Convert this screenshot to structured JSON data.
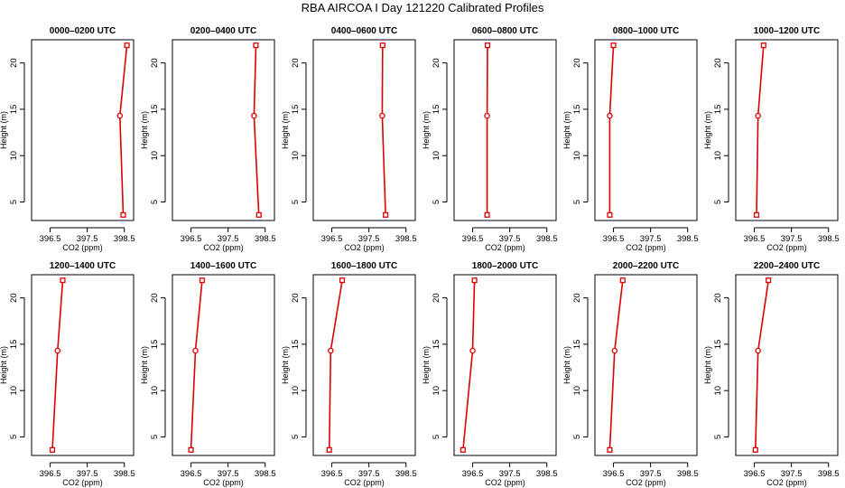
{
  "title": "RBA AIRCOA I  Day 121220  Calibrated Profiles",
  "colors": {
    "line": "#dd0000",
    "axes": "#000000",
    "background": "#ffffff"
  },
  "chart_data": [
    {
      "type": "line",
      "title": "0000–0200 UTC",
      "xlabel": "CO2 (ppm)",
      "ylabel": "Height (m)",
      "xlim": [
        396.0,
        398.75
      ],
      "ylim": [
        3,
        22.5
      ],
      "xticks": [
        "396.5",
        "397.5",
        "398.5"
      ],
      "yticks": [
        "5",
        "10",
        "15",
        "20"
      ],
      "series": [
        {
          "x": [
            398.47,
            398.38,
            398.57
          ],
          "y": [
            3.6,
            14.3,
            21.9
          ]
        }
      ]
    },
    {
      "type": "line",
      "title": "0200–0400 UTC",
      "xlabel": "CO2 (ppm)",
      "ylabel": "Height (m)",
      "xlim": [
        396.0,
        398.75
      ],
      "ylim": [
        3,
        22.5
      ],
      "xticks": [
        "396.5",
        "397.5",
        "398.5"
      ],
      "yticks": [
        "5",
        "10",
        "15",
        "20"
      ],
      "series": [
        {
          "x": [
            398.33,
            398.2,
            398.25
          ],
          "y": [
            3.6,
            14.3,
            21.9
          ]
        }
      ]
    },
    {
      "type": "line",
      "title": "0400–0600 UTC",
      "xlabel": "CO2 (ppm)",
      "ylabel": "Height (m)",
      "xlim": [
        396.0,
        398.75
      ],
      "ylim": [
        3,
        22.5
      ],
      "xticks": [
        "396.5",
        "397.5",
        "398.5"
      ],
      "yticks": [
        "5",
        "10",
        "15",
        "20"
      ],
      "series": [
        {
          "x": [
            397.95,
            397.86,
            397.87
          ],
          "y": [
            3.6,
            14.3,
            21.9
          ]
        }
      ]
    },
    {
      "type": "line",
      "title": "0600–0800 UTC",
      "xlabel": "CO2 (ppm)",
      "ylabel": "Height (m)",
      "xlim": [
        396.0,
        398.75
      ],
      "ylim": [
        3,
        22.5
      ],
      "xticks": [
        "396.5",
        "397.5",
        "398.5"
      ],
      "yticks": [
        "5",
        "10",
        "15",
        "20"
      ],
      "series": [
        {
          "x": [
            396.89,
            396.89,
            396.9
          ],
          "y": [
            3.6,
            14.3,
            21.9
          ]
        }
      ]
    },
    {
      "type": "line",
      "title": "0800–1000 UTC",
      "xlabel": "CO2 (ppm)",
      "ylabel": "Height (m)",
      "xlim": [
        396.0,
        398.75
      ],
      "ylim": [
        3,
        22.5
      ],
      "xticks": [
        "396.5",
        "397.5",
        "398.5"
      ],
      "yticks": [
        "5",
        "10",
        "15",
        "20"
      ],
      "series": [
        {
          "x": [
            396.4,
            396.4,
            396.5
          ],
          "y": [
            3.6,
            14.3,
            21.9
          ]
        }
      ]
    },
    {
      "type": "line",
      "title": "1000–1200 UTC",
      "xlabel": "CO2 (ppm)",
      "ylabel": "Height (m)",
      "xlim": [
        396.0,
        398.75
      ],
      "ylim": [
        3,
        22.5
      ],
      "xticks": [
        "396.5",
        "397.5",
        "398.5"
      ],
      "yticks": [
        "5",
        "10",
        "15",
        "20"
      ],
      "series": [
        {
          "x": [
            396.56,
            396.6,
            396.75
          ],
          "y": [
            3.6,
            14.3,
            21.9
          ]
        }
      ]
    },
    {
      "type": "line",
      "title": "1200–1400 UTC",
      "xlabel": "CO2 (ppm)",
      "ylabel": "Height (m)",
      "xlim": [
        396.0,
        398.75
      ],
      "ylim": [
        3,
        22.5
      ],
      "xticks": [
        "396.5",
        "397.5",
        "398.5"
      ],
      "yticks": [
        "5",
        "10",
        "15",
        "20"
      ],
      "series": [
        {
          "x": [
            396.56,
            396.7,
            396.84
          ],
          "y": [
            3.6,
            14.3,
            21.9
          ]
        }
      ]
    },
    {
      "type": "line",
      "title": "1400–1600 UTC",
      "xlabel": "CO2 (ppm)",
      "ylabel": "Height (m)",
      "xlim": [
        396.0,
        398.75
      ],
      "ylim": [
        3,
        22.5
      ],
      "xticks": [
        "396.5",
        "397.5",
        "398.5"
      ],
      "yticks": [
        "5",
        "10",
        "15",
        "20"
      ],
      "series": [
        {
          "x": [
            396.5,
            396.62,
            396.8
          ],
          "y": [
            3.6,
            14.3,
            21.9
          ]
        }
      ]
    },
    {
      "type": "line",
      "title": "1600–1800 UTC",
      "xlabel": "CO2 (ppm)",
      "ylabel": "Height (m)",
      "xlim": [
        396.0,
        398.75
      ],
      "ylim": [
        3,
        22.5
      ],
      "xticks": [
        "396.5",
        "397.5",
        "398.5"
      ],
      "yticks": [
        "5",
        "10",
        "15",
        "20"
      ],
      "series": [
        {
          "x": [
            396.43,
            396.47,
            396.78
          ],
          "y": [
            3.6,
            14.3,
            21.9
          ]
        }
      ]
    },
    {
      "type": "line",
      "title": "1800–2000 UTC",
      "xlabel": "CO2 (ppm)",
      "ylabel": "Height (m)",
      "xlim": [
        396.0,
        398.75
      ],
      "ylim": [
        3,
        22.5
      ],
      "xticks": [
        "396.5",
        "397.5",
        "398.5"
      ],
      "yticks": [
        "5",
        "10",
        "15",
        "20"
      ],
      "series": [
        {
          "x": [
            396.24,
            396.5,
            396.55
          ],
          "y": [
            3.6,
            14.3,
            21.9
          ]
        }
      ]
    },
    {
      "type": "line",
      "title": "2000–2200 UTC",
      "xlabel": "CO2 (ppm)",
      "ylabel": "Height (m)",
      "xlim": [
        396.0,
        398.75
      ],
      "ylim": [
        3,
        22.5
      ],
      "xticks": [
        "396.5",
        "397.5",
        "398.5"
      ],
      "yticks": [
        "5",
        "10",
        "15",
        "20"
      ],
      "series": [
        {
          "x": [
            396.4,
            396.53,
            396.75
          ],
          "y": [
            3.6,
            14.3,
            21.9
          ]
        }
      ]
    },
    {
      "type": "line",
      "title": "2200–2400 UTC",
      "xlabel": "CO2 (ppm)",
      "ylabel": "Height (m)",
      "xlim": [
        396.0,
        398.75
      ],
      "ylim": [
        3,
        22.5
      ],
      "xticks": [
        "396.5",
        "397.5",
        "398.5"
      ],
      "yticks": [
        "5",
        "10",
        "15",
        "20"
      ],
      "series": [
        {
          "x": [
            396.53,
            396.6,
            396.88
          ],
          "y": [
            3.6,
            14.3,
            21.9
          ]
        }
      ]
    }
  ]
}
